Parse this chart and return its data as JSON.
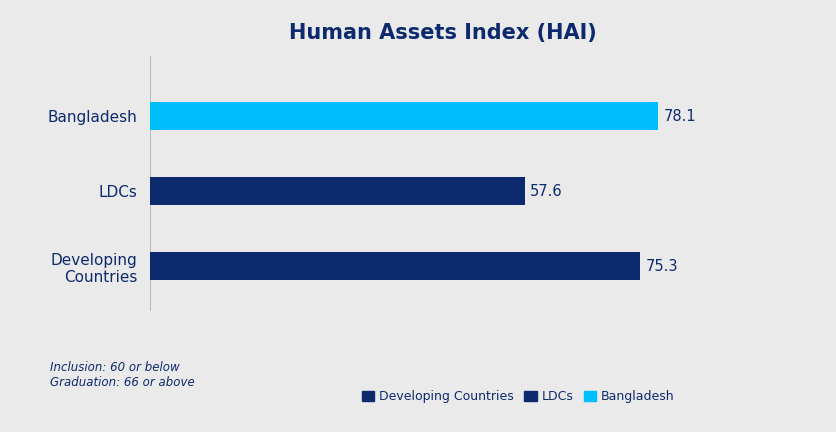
{
  "title": "Human Assets Index (HAI)",
  "categories": [
    "Bangladesh",
    "LDCs",
    "Developing\nCountries"
  ],
  "values": [
    78.1,
    57.6,
    75.3
  ],
  "bar_colors": [
    "#00BFFF",
    "#0D2A6E",
    "#0D2A6E"
  ],
  "value_labels": [
    "78.1",
    "57.6",
    "75.3"
  ],
  "legend_labels": [
    "Developing Countries",
    "LDCs",
    "Bangladesh"
  ],
  "legend_colors": [
    "#0D2A6E",
    "#0D2A6E",
    "#00BFFF"
  ],
  "note_line1": "Inclusion: 60 or below",
  "note_line2": "Graduation: 66 or above",
  "background_color": "#EAEAEA",
  "title_color": "#0D2A6E",
  "label_color": "#0D2A6E",
  "xlim": [
    0,
    90
  ],
  "title_fontsize": 15,
  "label_fontsize": 11,
  "value_fontsize": 10.5
}
